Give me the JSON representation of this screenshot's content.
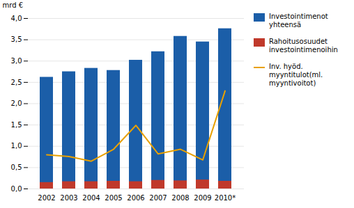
{
  "chart_data": {
    "type": "bar",
    "categories": [
      "2002",
      "2003",
      "2004",
      "2005",
      "2006",
      "2007",
      "2008",
      "2009",
      "2010*"
    ],
    "series": [
      {
        "name": "Investointimenot\nyhteensä",
        "type": "bar",
        "color": "#1B5EA8",
        "values": [
          2.62,
          2.75,
          2.83,
          2.78,
          3.02,
          3.22,
          3.58,
          3.45,
          3.76
        ]
      },
      {
        "name": "Rahoitusosuudet\ninvestointimenoihin",
        "type": "bar",
        "color": "#C0392B",
        "values": [
          0.15,
          0.17,
          0.17,
          0.18,
          0.17,
          0.2,
          0.19,
          0.21,
          0.18
        ]
      },
      {
        "name": "Inv. hyöd.\nmyyntitulot(ml.\nmyyntivoitot)",
        "type": "line",
        "color": "#E8A000",
        "values": [
          0.8,
          0.76,
          0.65,
          0.93,
          1.49,
          0.82,
          0.93,
          0.68,
          2.3
        ]
      }
    ],
    "ylabel": "mrd €",
    "ylim": [
      0,
      4.0
    ],
    "yticks": [
      {
        "value": 0.0,
        "label": "0,0"
      },
      {
        "value": 0.5,
        "label": "0,5"
      },
      {
        "value": 1.0,
        "label": "1,0"
      },
      {
        "value": 1.5,
        "label": "1,5"
      },
      {
        "value": 2.0,
        "label": "2,0"
      },
      {
        "value": 2.5,
        "label": "2,5"
      },
      {
        "value": 3.0,
        "label": "3,0"
      },
      {
        "value": 3.5,
        "label": "3,5"
      },
      {
        "value": 4.0,
        "label": "4,0"
      }
    ],
    "grid": true,
    "stacked": false,
    "legend": "right"
  }
}
